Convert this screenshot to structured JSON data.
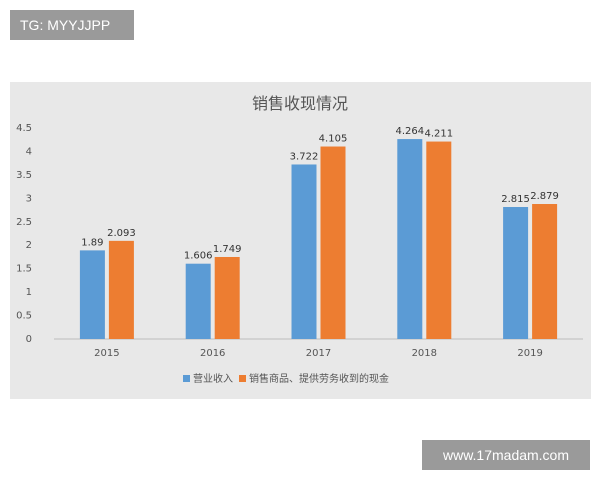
{
  "watermark_top": "TG: MYYJJPP",
  "watermark_bottom": "www.17madam.com",
  "colors": {
    "panel_bg": "#e8e8e8",
    "series_1": "#5b9bd5",
    "series_2": "#ed7d31",
    "axis_line": "#bdbdbd"
  },
  "chart_data": {
    "type": "bar",
    "title": "销售收现情况",
    "categories": [
      "2015",
      "2016",
      "2017",
      "2018",
      "2019"
    ],
    "series": [
      {
        "name": "营业收入",
        "values": [
          1.89,
          1.606,
          3.722,
          4.264,
          2.815
        ],
        "labels": [
          "1.89",
          "1.606",
          "3.722",
          "4.264",
          "2.815"
        ]
      },
      {
        "name": "销售商品、提供劳务收到的现金",
        "values": [
          2.093,
          1.749,
          4.105,
          4.211,
          2.879
        ],
        "labels": [
          "2.093",
          "1.749",
          "4.105",
          "4.211",
          "2.879"
        ]
      }
    ],
    "yticks": [
      "0",
      "0.5",
      "1",
      "1.5",
      "2",
      "2.5",
      "3",
      "3.5",
      "4",
      "4.5"
    ],
    "ylim": [
      0,
      4.5
    ],
    "grid": false,
    "legend_position": "bottom"
  }
}
